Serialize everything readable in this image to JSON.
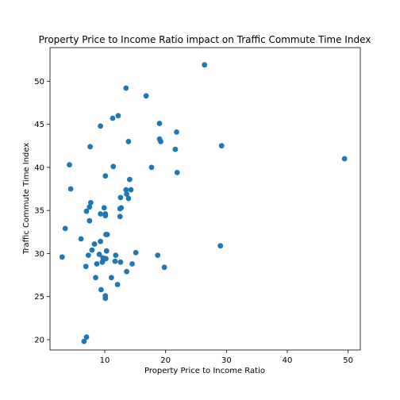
{
  "chart_data": {
    "type": "scatter",
    "title": "Property Price to Income Ratio impact on Traffic Commute Time Index",
    "xlabel": "Property Price to Income Ratio",
    "ylabel": "Traffic Commute Time Index",
    "xlim": [
      1.0,
      52.0
    ],
    "ylim": [
      18.8,
      53.9
    ],
    "x_ticks": [
      10,
      20,
      30,
      40,
      50
    ],
    "y_ticks": [
      20,
      25,
      30,
      35,
      40,
      45,
      50
    ],
    "grid": false,
    "point_color": "#1f77b4",
    "points": [
      [
        26.4,
        51.9
      ],
      [
        13.5,
        49.2
      ],
      [
        16.8,
        48.3
      ],
      [
        12.2,
        46.0
      ],
      [
        11.3,
        45.7
      ],
      [
        9.3,
        44.8
      ],
      [
        19.0,
        45.1
      ],
      [
        21.8,
        44.1
      ],
      [
        19.0,
        43.3
      ],
      [
        19.2,
        43.0
      ],
      [
        13.9,
        43.0
      ],
      [
        7.6,
        42.4
      ],
      [
        21.6,
        42.1
      ],
      [
        29.2,
        42.5
      ],
      [
        49.4,
        41.0
      ],
      [
        4.2,
        40.3
      ],
      [
        11.4,
        40.1
      ],
      [
        17.7,
        40.0
      ],
      [
        21.9,
        39.4
      ],
      [
        10.1,
        39.0
      ],
      [
        14.1,
        38.6
      ],
      [
        4.4,
        37.5
      ],
      [
        13.5,
        37.4
      ],
      [
        14.3,
        37.4
      ],
      [
        13.6,
        36.9
      ],
      [
        12.6,
        36.5
      ],
      [
        13.9,
        36.4
      ],
      [
        7.7,
        35.9
      ],
      [
        7.5,
        35.4
      ],
      [
        9.9,
        35.3
      ],
      [
        12.7,
        35.3
      ],
      [
        12.5,
        35.2
      ],
      [
        7.0,
        34.9
      ],
      [
        9.3,
        34.6
      ],
      [
        10.1,
        34.6
      ],
      [
        10.1,
        34.4
      ],
      [
        12.5,
        34.3
      ],
      [
        7.5,
        33.8
      ],
      [
        3.5,
        32.9
      ],
      [
        10.2,
        32.2
      ],
      [
        10.4,
        32.2
      ],
      [
        6.1,
        31.7
      ],
      [
        9.3,
        31.4
      ],
      [
        8.3,
        31.1
      ],
      [
        29.0,
        30.9
      ],
      [
        7.9,
        30.4
      ],
      [
        10.3,
        30.3
      ],
      [
        15.1,
        30.1
      ],
      [
        9.1,
        29.9
      ],
      [
        7.3,
        29.8
      ],
      [
        11.8,
        29.8
      ],
      [
        18.7,
        29.8
      ],
      [
        3.0,
        29.6
      ],
      [
        9.7,
        29.5
      ],
      [
        10.2,
        29.4
      ],
      [
        9.8,
        29.3
      ],
      [
        11.7,
        29.1
      ],
      [
        9.6,
        29.0
      ],
      [
        12.6,
        29.0
      ],
      [
        14.5,
        28.8
      ],
      [
        8.7,
        28.8
      ],
      [
        6.9,
        28.5
      ],
      [
        19.8,
        28.4
      ],
      [
        13.6,
        27.9
      ],
      [
        8.5,
        27.2
      ],
      [
        11.1,
        27.2
      ],
      [
        12.1,
        26.4
      ],
      [
        9.4,
        25.8
      ],
      [
        10.1,
        25.1
      ],
      [
        10.1,
        24.8
      ],
      [
        7.0,
        20.3
      ],
      [
        6.6,
        19.8
      ]
    ]
  }
}
